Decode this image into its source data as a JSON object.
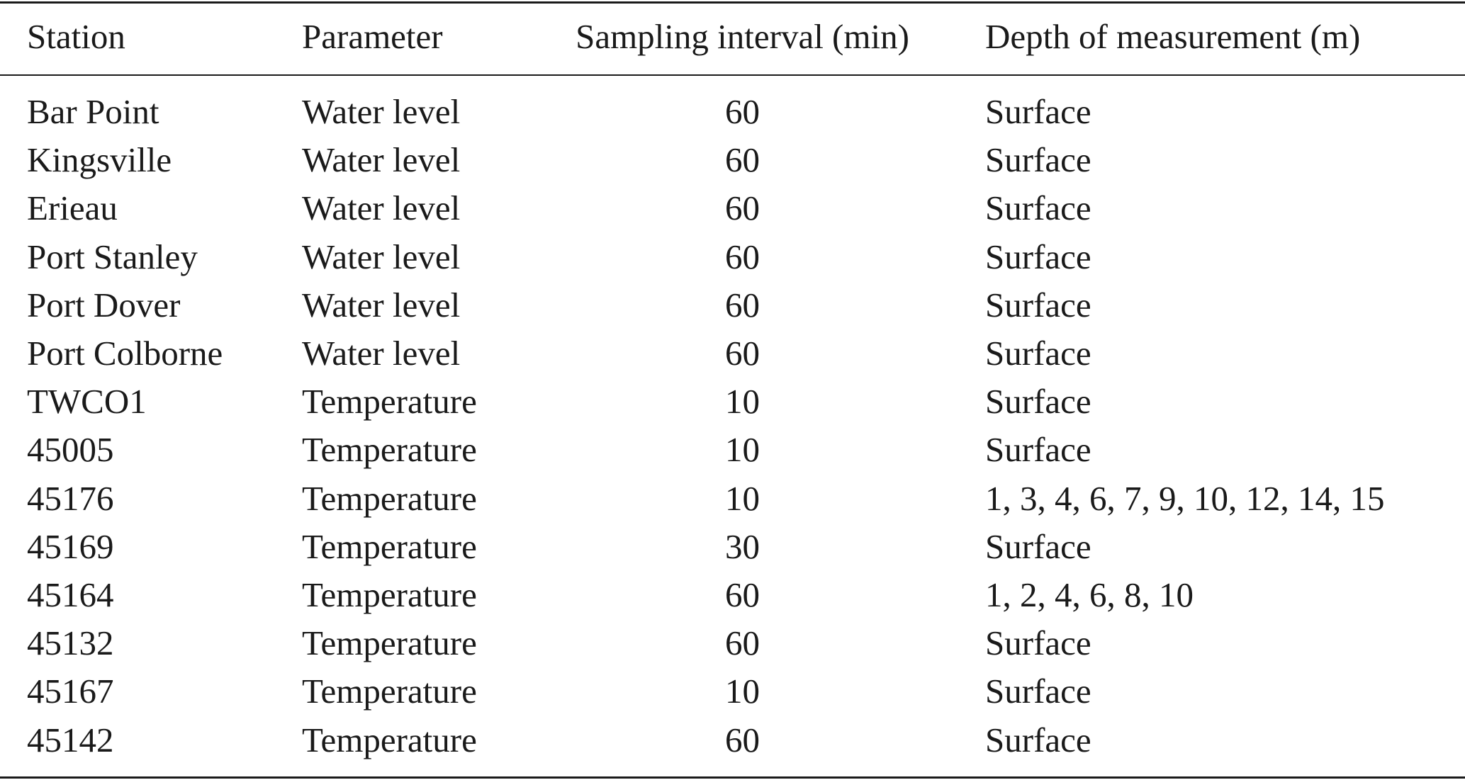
{
  "table": {
    "headers": {
      "station": "Station",
      "parameter": "Parameter",
      "interval": "Sampling interval (min)",
      "depth": "Depth of measurement (m)"
    },
    "rows": [
      {
        "station": "Bar Point",
        "parameter": "Water level",
        "interval": "60",
        "depth": "Surface"
      },
      {
        "station": "Kingsville",
        "parameter": "Water level",
        "interval": "60",
        "depth": "Surface"
      },
      {
        "station": "Erieau",
        "parameter": "Water level",
        "interval": "60",
        "depth": "Surface"
      },
      {
        "station": "Port Stanley",
        "parameter": "Water level",
        "interval": "60",
        "depth": "Surface"
      },
      {
        "station": "Port Dover",
        "parameter": "Water level",
        "interval": "60",
        "depth": "Surface"
      },
      {
        "station": "Port Colborne",
        "parameter": "Water level",
        "interval": "60",
        "depth": "Surface"
      },
      {
        "station": "TWCO1",
        "parameter": "Temperature",
        "interval": "10",
        "depth": "Surface"
      },
      {
        "station": "45005",
        "parameter": "Temperature",
        "interval": "10",
        "depth": "Surface"
      },
      {
        "station": "45176",
        "parameter": "Temperature",
        "interval": "10",
        "depth": "1, 3, 4, 6, 7, 9, 10, 12, 14, 15"
      },
      {
        "station": "45169",
        "parameter": "Temperature",
        "interval": "30",
        "depth": "Surface"
      },
      {
        "station": "45164",
        "parameter": "Temperature",
        "interval": "60",
        "depth": "1, 2, 4, 6, 8, 10"
      },
      {
        "station": "45132",
        "parameter": "Temperature",
        "interval": "60",
        "depth": "Surface"
      },
      {
        "station": "45167",
        "parameter": "Temperature",
        "interval": "10",
        "depth": "Surface"
      },
      {
        "station": "45142",
        "parameter": "Temperature",
        "interval": "60",
        "depth": "Surface"
      }
    ]
  }
}
